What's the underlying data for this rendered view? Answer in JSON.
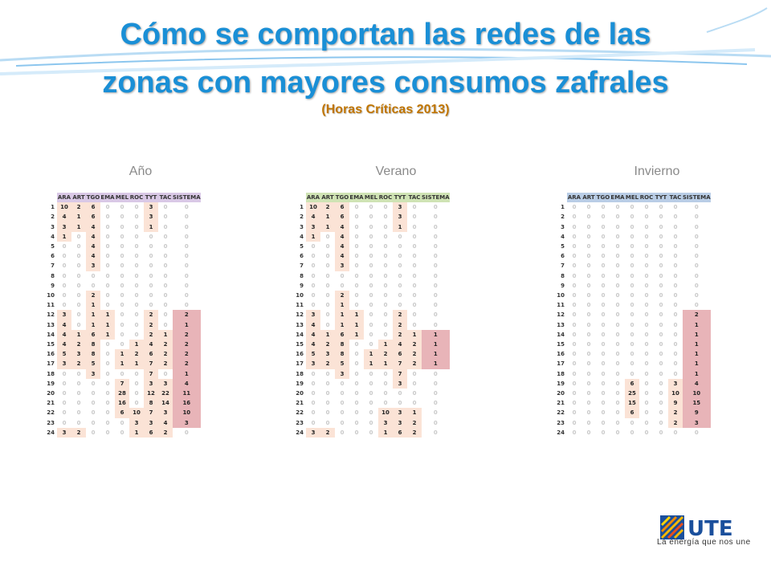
{
  "header": {
    "title_line1": "Cómo se comportan las redes de las",
    "title_line2": "zonas con mayores consumos zafrales",
    "subtitle": "(Horas Críticas 2013)"
  },
  "columns": [
    "ARA",
    "ART",
    "TGO",
    "EMA",
    "MEL",
    "ROC",
    "TYT",
    "TAC",
    "SISTEMA"
  ],
  "colors": {
    "title": "#1a8fd6",
    "subtitle": "#c07500",
    "cell_highlight": "#fbe3d6",
    "system_highlight": "#e8b4b8"
  },
  "panels": [
    {
      "label": "Año",
      "header_color": "#d9c8e6",
      "rows": [
        [
          1,
          10,
          2,
          6,
          0,
          0,
          0,
          3,
          0,
          0
        ],
        [
          2,
          4,
          1,
          6,
          0,
          0,
          0,
          3,
          0,
          0
        ],
        [
          3,
          3,
          1,
          4,
          0,
          0,
          0,
          1,
          0,
          0
        ],
        [
          4,
          1,
          0,
          4,
          0,
          0,
          0,
          0,
          0,
          0
        ],
        [
          5,
          0,
          0,
          4,
          0,
          0,
          0,
          0,
          0,
          0
        ],
        [
          6,
          0,
          0,
          4,
          0,
          0,
          0,
          0,
          0,
          0
        ],
        [
          7,
          0,
          0,
          3,
          0,
          0,
          0,
          0,
          0,
          0
        ],
        [
          8,
          0,
          0,
          0,
          0,
          0,
          0,
          0,
          0,
          0
        ],
        [
          9,
          0,
          0,
          0,
          0,
          0,
          0,
          0,
          0,
          0
        ],
        [
          10,
          0,
          0,
          2,
          0,
          0,
          0,
          0,
          0,
          0
        ],
        [
          11,
          0,
          0,
          1,
          0,
          0,
          0,
          0,
          0,
          0
        ],
        [
          12,
          3,
          0,
          1,
          1,
          0,
          0,
          2,
          0,
          2
        ],
        [
          13,
          4,
          0,
          1,
          1,
          0,
          0,
          2,
          0,
          1
        ],
        [
          14,
          4,
          1,
          6,
          1,
          0,
          0,
          2,
          1,
          2
        ],
        [
          15,
          4,
          2,
          8,
          0,
          0,
          1,
          4,
          2,
          2
        ],
        [
          16,
          5,
          3,
          8,
          0,
          1,
          2,
          6,
          2,
          2
        ],
        [
          17,
          3,
          2,
          5,
          0,
          1,
          1,
          7,
          2,
          2
        ],
        [
          18,
          0,
          0,
          3,
          0,
          0,
          0,
          7,
          0,
          1
        ],
        [
          19,
          0,
          0,
          0,
          0,
          7,
          0,
          3,
          3,
          4
        ],
        [
          20,
          0,
          0,
          0,
          0,
          28,
          0,
          12,
          22,
          11
        ],
        [
          21,
          0,
          0,
          0,
          0,
          16,
          0,
          8,
          14,
          16
        ],
        [
          22,
          0,
          0,
          0,
          0,
          6,
          10,
          7,
          3,
          10
        ],
        [
          23,
          0,
          0,
          0,
          0,
          0,
          3,
          3,
          4,
          3
        ],
        [
          24,
          3,
          2,
          0,
          0,
          0,
          1,
          6,
          2,
          0
        ]
      ],
      "system_flag": [
        0,
        0,
        0,
        0,
        0,
        0,
        0,
        0,
        0,
        0,
        0,
        1,
        1,
        1,
        1,
        1,
        1,
        1,
        1,
        1,
        1,
        1,
        1,
        0
      ]
    },
    {
      "label": "Verano",
      "header_color": "#cfe3b4",
      "rows": [
        [
          1,
          10,
          2,
          6,
          0,
          0,
          0,
          3,
          0,
          0
        ],
        [
          2,
          4,
          1,
          6,
          0,
          0,
          0,
          3,
          0,
          0
        ],
        [
          3,
          3,
          1,
          4,
          0,
          0,
          0,
          1,
          0,
          0
        ],
        [
          4,
          1,
          0,
          4,
          0,
          0,
          0,
          0,
          0,
          0
        ],
        [
          5,
          0,
          0,
          4,
          0,
          0,
          0,
          0,
          0,
          0
        ],
        [
          6,
          0,
          0,
          4,
          0,
          0,
          0,
          0,
          0,
          0
        ],
        [
          7,
          0,
          0,
          3,
          0,
          0,
          0,
          0,
          0,
          0
        ],
        [
          8,
          0,
          0,
          0,
          0,
          0,
          0,
          0,
          0,
          0
        ],
        [
          9,
          0,
          0,
          0,
          0,
          0,
          0,
          0,
          0,
          0
        ],
        [
          10,
          0,
          0,
          2,
          0,
          0,
          0,
          0,
          0,
          0
        ],
        [
          11,
          0,
          0,
          1,
          0,
          0,
          0,
          0,
          0,
          0
        ],
        [
          12,
          3,
          0,
          1,
          1,
          0,
          0,
          2,
          0,
          0
        ],
        [
          13,
          4,
          0,
          1,
          1,
          0,
          0,
          2,
          0,
          0
        ],
        [
          14,
          4,
          1,
          6,
          1,
          0,
          0,
          2,
          1,
          1
        ],
        [
          15,
          4,
          2,
          8,
          0,
          0,
          1,
          4,
          2,
          1
        ],
        [
          16,
          5,
          3,
          8,
          0,
          1,
          2,
          6,
          2,
          1
        ],
        [
          17,
          3,
          2,
          5,
          0,
          1,
          1,
          7,
          2,
          1
        ],
        [
          18,
          0,
          0,
          3,
          0,
          0,
          0,
          7,
          0,
          0
        ],
        [
          19,
          0,
          0,
          0,
          0,
          0,
          0,
          3,
          0,
          0
        ],
        [
          20,
          0,
          0,
          0,
          0,
          0,
          0,
          0,
          0,
          0
        ],
        [
          21,
          0,
          0,
          0,
          0,
          0,
          0,
          0,
          0,
          0
        ],
        [
          22,
          0,
          0,
          0,
          0,
          0,
          10,
          3,
          1,
          0
        ],
        [
          23,
          0,
          0,
          0,
          0,
          0,
          3,
          3,
          2,
          0
        ],
        [
          24,
          3,
          2,
          0,
          0,
          0,
          1,
          6,
          2,
          0
        ]
      ],
      "system_flag": [
        0,
        0,
        0,
        0,
        0,
        0,
        0,
        0,
        0,
        0,
        0,
        0,
        0,
        1,
        1,
        1,
        1,
        0,
        0,
        0,
        0,
        0,
        0,
        0
      ]
    },
    {
      "label": "Invierno",
      "header_color": "#b9cde6",
      "rows": [
        [
          1,
          0,
          0,
          0,
          0,
          0,
          0,
          0,
          0,
          0
        ],
        [
          2,
          0,
          0,
          0,
          0,
          0,
          0,
          0,
          0,
          0
        ],
        [
          3,
          0,
          0,
          0,
          0,
          0,
          0,
          0,
          0,
          0
        ],
        [
          4,
          0,
          0,
          0,
          0,
          0,
          0,
          0,
          0,
          0
        ],
        [
          5,
          0,
          0,
          0,
          0,
          0,
          0,
          0,
          0,
          0
        ],
        [
          6,
          0,
          0,
          0,
          0,
          0,
          0,
          0,
          0,
          0
        ],
        [
          7,
          0,
          0,
          0,
          0,
          0,
          0,
          0,
          0,
          0
        ],
        [
          8,
          0,
          0,
          0,
          0,
          0,
          0,
          0,
          0,
          0
        ],
        [
          9,
          0,
          0,
          0,
          0,
          0,
          0,
          0,
          0,
          0
        ],
        [
          10,
          0,
          0,
          0,
          0,
          0,
          0,
          0,
          0,
          0
        ],
        [
          11,
          0,
          0,
          0,
          0,
          0,
          0,
          0,
          0,
          0
        ],
        [
          12,
          0,
          0,
          0,
          0,
          0,
          0,
          0,
          0,
          2
        ],
        [
          13,
          0,
          0,
          0,
          0,
          0,
          0,
          0,
          0,
          1
        ],
        [
          14,
          0,
          0,
          0,
          0,
          0,
          0,
          0,
          0,
          1
        ],
        [
          15,
          0,
          0,
          0,
          0,
          0,
          0,
          0,
          0,
          1
        ],
        [
          16,
          0,
          0,
          0,
          0,
          0,
          0,
          0,
          0,
          1
        ],
        [
          17,
          0,
          0,
          0,
          0,
          0,
          0,
          0,
          0,
          1
        ],
        [
          18,
          0,
          0,
          0,
          0,
          0,
          0,
          0,
          0,
          1
        ],
        [
          19,
          0,
          0,
          0,
          0,
          6,
          0,
          0,
          3,
          4
        ],
        [
          20,
          0,
          0,
          0,
          0,
          25,
          0,
          0,
          10,
          10
        ],
        [
          21,
          0,
          0,
          0,
          0,
          15,
          0,
          0,
          9,
          15
        ],
        [
          22,
          0,
          0,
          0,
          0,
          6,
          0,
          0,
          2,
          9
        ],
        [
          23,
          0,
          0,
          0,
          0,
          0,
          0,
          0,
          2,
          3
        ],
        [
          24,
          0,
          0,
          0,
          0,
          0,
          0,
          0,
          0,
          0
        ]
      ],
      "system_flag": [
        0,
        0,
        0,
        0,
        0,
        0,
        0,
        0,
        0,
        0,
        0,
        1,
        1,
        1,
        1,
        1,
        1,
        1,
        1,
        1,
        1,
        1,
        1,
        0
      ]
    }
  ],
  "logo": {
    "brand": "UTE",
    "tagline": "La energía que nos une"
  }
}
